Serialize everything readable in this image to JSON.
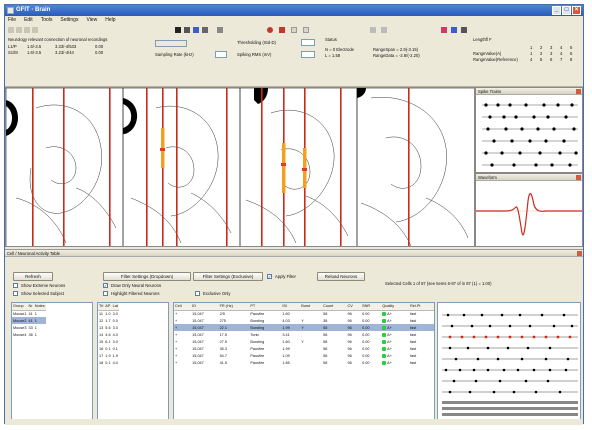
{
  "title": "GFIT - Brain",
  "menu": [
    "File",
    "Edit",
    "Tools",
    "Settings",
    "View",
    "Help"
  ],
  "toolbar": {
    "coord_header": "Neurology relevant connection of neuronal recordings",
    "coord_rows": [
      {
        "label": "L1/P",
        "a": "1.6/-3.5",
        "b": "3.33/-4/533",
        "c": "0.00"
      },
      {
        "label": "S1/M",
        "a": "1.6/-3.5",
        "b": "3.23/-4/44",
        "c": "0.00"
      }
    ],
    "sampling_label": "Sampling Rate (kHz)",
    "threshold_label": "Thresholding (Std-D)",
    "threshold_value": "",
    "rms_label": "Spiking RMS (mV)",
    "rms_value": "",
    "depth_label": "Total Depth (mm)",
    "status_label": "Status",
    "status_line1": "N = 0  Electrode",
    "status_line2": "L = 1.58",
    "range_line1": "RangeSpan = 2.9(-3.15)",
    "range_line2": "RangeData = -2.8/(-2.20)",
    "model_label": "Lengthfl F",
    "model_cols": [
      "1",
      "2",
      "3",
      "4",
      "5"
    ],
    "model_rows": [
      {
        "label": "RangeValue(A)",
        "vals": [
          "1",
          "2",
          "3",
          "4",
          "5"
        ]
      },
      {
        "label": "RangeValue(Reference)",
        "vals": [
          "4",
          "5",
          "6",
          "7",
          "8"
        ]
      }
    ]
  },
  "panels": {
    "spike_train_title": "Spike Trains",
    "waveform_title": "Waveform"
  },
  "lower": {
    "title": "Cell / Neuronal Activity Table",
    "buttons": {
      "refresh": "Refresh",
      "filter_all": "Filter Settings (Dropdown)",
      "filter_active": "Filter Settings (Exclusive)",
      "apply": "Apply Filter",
      "reload": "Reload Neurons"
    },
    "checks": {
      "show_all": "Show Extreme Neurons",
      "show_selected": "Show Selected Subject",
      "draw_layout": "Draw Only Neural Neurons",
      "highlight": "Highlight Filtered Neurons",
      "export": "Exclusive Only"
    },
    "summary": "Selected Cells 1 of 87 (see Items 6-87 of in 87 (1) = 1.00)",
    "subjects": {
      "headers": [
        "Group",
        "Nr",
        "Notes"
      ],
      "rows": [
        [
          "Mouse1",
          "41",
          "1"
        ],
        [
          "Mouse2",
          "41",
          "1"
        ],
        [
          "Mouse3",
          "33",
          "1"
        ],
        [
          "Mouse4",
          "36",
          "1"
        ]
      ]
    },
    "sessions": {
      "headers": [
        "Trl",
        "AP",
        "Lat"
      ],
      "rows": [
        [
          "11",
          "1.0",
          "3.0"
        ],
        [
          "12",
          "1.7",
          "0.0"
        ],
        [
          "13",
          "5.6",
          "3.0"
        ],
        [
          "14",
          "4.6",
          "4.0"
        ],
        [
          "15",
          "6.1",
          "3.0"
        ],
        [
          "16",
          "0.1",
          "0.1"
        ],
        [
          "17",
          "1.9",
          "1.9"
        ],
        [
          "18",
          "0.1",
          "4.0"
        ]
      ]
    },
    "cells": {
      "headers": [
        "Cell",
        "ID",
        "FR (Hz)",
        "PT",
        "ISI",
        "Burst",
        "Count",
        "CV",
        "SNR",
        "Quality",
        "Rel.Pt"
      ],
      "rows": [
        [
          "+",
          "15,047",
          "2/5",
          "Pausfire",
          "1.60",
          "",
          "58",
          "96",
          "0.00",
          "A+",
          "fast"
        ],
        [
          "+",
          "15,047",
          "275",
          "Bursting",
          "4.03",
          "Y",
          "38",
          "96",
          "0.00",
          "A+",
          "fast"
        ],
        [
          "+",
          "15,047",
          "22.1",
          "Bursting",
          "1.99",
          "Y",
          "58",
          "96",
          "0.00",
          "A+",
          "fast"
        ],
        [
          "+",
          "15,047",
          "17.5",
          "Tonic",
          "3.41",
          "",
          "58",
          "96",
          "0.00",
          "A+",
          "fast"
        ],
        [
          "+",
          "15,047",
          "27.5",
          "Bursting",
          "1.60",
          "Y",
          "58",
          "96",
          "0.00",
          "A+",
          "fast"
        ],
        [
          "+",
          "15,047",
          "35.3",
          "Pausfire",
          "1.99",
          "",
          "58",
          "96",
          "0.00",
          "A+",
          "fast"
        ],
        [
          "+",
          "15,047",
          "54.7",
          "Pausfire",
          "1.09",
          "",
          "58",
          "96",
          "0.00",
          "A+",
          "fast"
        ],
        [
          "+",
          "15,047",
          "41.5",
          "Pausfire",
          "1.85",
          "",
          "58",
          "96",
          "0.00",
          "A+",
          "fast"
        ]
      ],
      "selected_row": 2
    }
  }
}
